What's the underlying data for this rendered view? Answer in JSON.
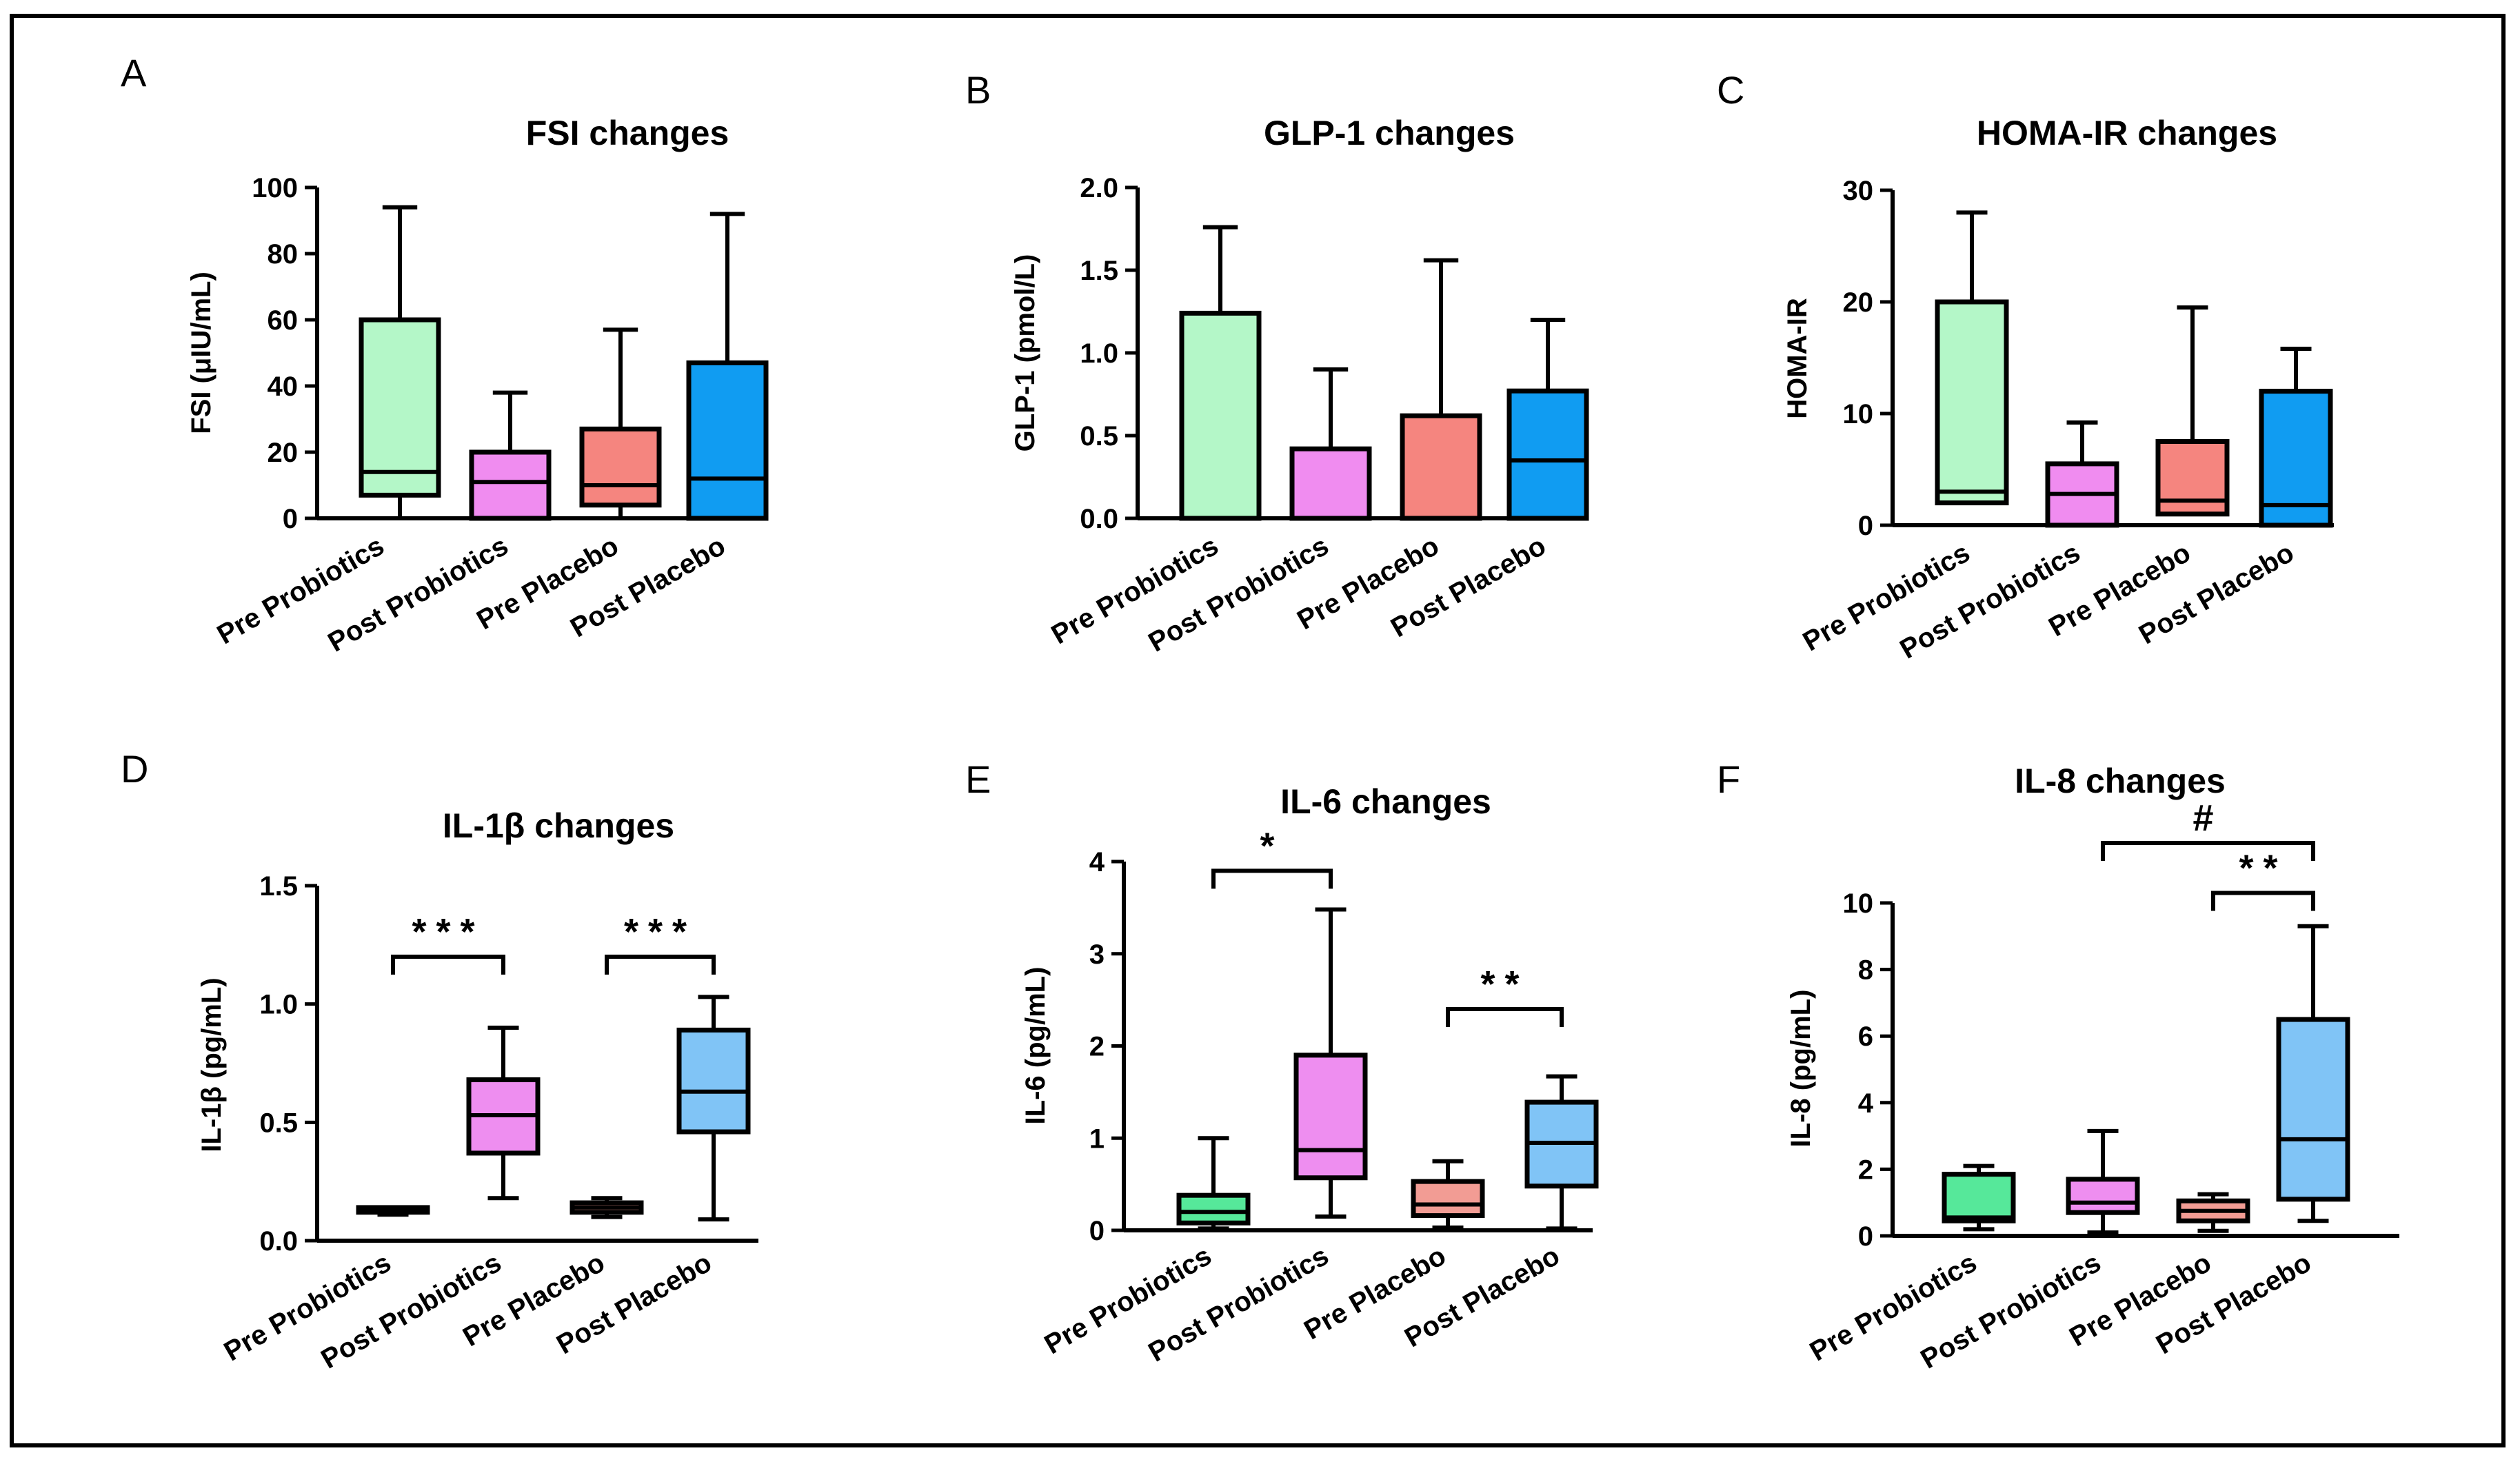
{
  "figure": {
    "background": "#ffffff",
    "stroke": "#000000"
  },
  "colors": {
    "Pre Probiotics": "#b4f7c8",
    "Post Probiotics": "#f08cf0",
    "Pre Placebo": "#f5857f",
    "Post Placebo": "#109cf2"
  },
  "colors_row2": {
    "Pre Probiotics": "#56e89a",
    "Post Probiotics": "#ee8ef0",
    "Pre Placebo": "#f29c94",
    "Post Placebo": "#80c4f6"
  },
  "chart_data": [
    {
      "panel": "A",
      "type": "box",
      "title": "FSI changes",
      "ylabel": "FSI (μIU/mL)",
      "ylim": [
        0,
        100
      ],
      "yticks": [
        "0",
        "20",
        "40",
        "60",
        "80",
        "100"
      ],
      "ytick_values": [
        0,
        20,
        40,
        60,
        80,
        100
      ],
      "categories": [
        "Pre Probiotics",
        "Post Probiotics",
        "Pre Placebo",
        "Post Placebo"
      ],
      "series": [
        {
          "name": "Pre Probiotics",
          "min": 0,
          "q1": 7,
          "median": 14,
          "q3": 60,
          "max": 94
        },
        {
          "name": "Post Probiotics",
          "min": 0,
          "q1": 0,
          "median": 11,
          "q3": 20,
          "max": 38
        },
        {
          "name": "Pre Placebo",
          "min": 0,
          "q1": 4,
          "median": 10,
          "q3": 27,
          "max": 57
        },
        {
          "name": "Post Placebo",
          "min": 0,
          "q1": 0,
          "median": 12,
          "q3": 47,
          "max": 92
        }
      ],
      "significance": []
    },
    {
      "panel": "B",
      "type": "box",
      "title": "GLP-1 changes",
      "ylabel": "GLP-1 (pmol/L)",
      "ylim": [
        0,
        2.0
      ],
      "yticks": [
        "0.0",
        "0.5",
        "1.0",
        "1.5",
        "2.0"
      ],
      "ytick_values": [
        0,
        0.5,
        1.0,
        1.5,
        2.0
      ],
      "categories": [
        "Pre Probiotics",
        "Post Probiotics",
        "Pre Placebo",
        "Post Placebo"
      ],
      "series": [
        {
          "name": "Pre Probiotics",
          "min": 0,
          "q1": 0,
          "median": 0,
          "q3": 1.24,
          "max": 1.76
        },
        {
          "name": "Post Probiotics",
          "min": 0,
          "q1": 0,
          "median": 0,
          "q3": 0.42,
          "max": 0.9
        },
        {
          "name": "Pre Placebo",
          "min": 0,
          "q1": 0,
          "median": 0,
          "q3": 0.62,
          "max": 1.56
        },
        {
          "name": "Post Placebo",
          "min": 0,
          "q1": 0,
          "median": 0.35,
          "q3": 0.77,
          "max": 1.2
        }
      ],
      "significance": []
    },
    {
      "panel": "C",
      "type": "box",
      "title": "HOMA-IR changes",
      "ylabel": "HOMA-IR",
      "ylim": [
        0,
        30
      ],
      "yticks": [
        "0",
        "10",
        "20",
        "30"
      ],
      "ytick_values": [
        0,
        10,
        20,
        30
      ],
      "categories": [
        "Pre Probiotics",
        "Post Probiotics",
        "Pre Placebo",
        "Post Placebo"
      ],
      "series": [
        {
          "name": "Pre Probiotics",
          "min": 2,
          "q1": 2,
          "median": 3,
          "q3": 20,
          "max": 28
        },
        {
          "name": "Post Probiotics",
          "min": 0,
          "q1": 0,
          "median": 2.8,
          "q3": 5.5,
          "max": 9.2
        },
        {
          "name": "Pre Placebo",
          "min": 1,
          "q1": 1,
          "median": 2.2,
          "q3": 7.5,
          "max": 19.5
        },
        {
          "name": "Post Placebo",
          "min": 0,
          "q1": 0,
          "median": 1.8,
          "q3": 12,
          "max": 15.8
        }
      ],
      "significance": []
    },
    {
      "panel": "D",
      "type": "box",
      "title": "IL-1β changes",
      "ylabel": "IL-1β (pg/mL)",
      "ylim": [
        0,
        1.5
      ],
      "yticks": [
        "0.0",
        "0.5",
        "1.0",
        "1.5"
      ],
      "ytick_values": [
        0,
        0.5,
        1.0,
        1.5
      ],
      "categories": [
        "Pre Probiotics",
        "Post Probiotics",
        "Pre Placebo",
        "Post Placebo"
      ],
      "series": [
        {
          "name": "Pre Probiotics",
          "min": 0.11,
          "q1": 0.12,
          "median": 0.13,
          "q3": 0.14,
          "max": 0.14
        },
        {
          "name": "Post Probiotics",
          "min": 0.18,
          "q1": 0.37,
          "median": 0.53,
          "q3": 0.68,
          "max": 0.9
        },
        {
          "name": "Pre Placebo",
          "min": 0.1,
          "q1": 0.12,
          "median": 0.14,
          "q3": 0.16,
          "max": 0.18
        },
        {
          "name": "Post Placebo",
          "min": 0.09,
          "q1": 0.46,
          "median": 0.63,
          "q3": 0.89,
          "max": 1.03
        }
      ],
      "significance": [
        {
          "from": 0,
          "to": 1,
          "level": 1.2,
          "label": "***"
        },
        {
          "from": 2,
          "to": 3,
          "level": 1.2,
          "label": "***"
        }
      ]
    },
    {
      "panel": "E",
      "type": "box",
      "title": "IL-6 changes",
      "ylabel": "IL-6 (pg/mL)",
      "ylim": [
        0,
        4
      ],
      "yticks": [
        "0",
        "1",
        "2",
        "3",
        "4"
      ],
      "ytick_values": [
        0,
        1,
        2,
        3,
        4
      ],
      "categories": [
        "Pre Probiotics",
        "Post Probiotics",
        "Pre Placebo",
        "Post Placebo"
      ],
      "series": [
        {
          "name": "Pre Probiotics",
          "min": 0.02,
          "q1": 0.08,
          "median": 0.2,
          "q3": 0.38,
          "max": 1.0
        },
        {
          "name": "Post Probiotics",
          "min": 0.15,
          "q1": 0.57,
          "median": 0.87,
          "q3": 1.9,
          "max": 3.48
        },
        {
          "name": "Pre Placebo",
          "min": 0.03,
          "q1": 0.16,
          "median": 0.28,
          "q3": 0.53,
          "max": 0.75
        },
        {
          "name": "Post Placebo",
          "min": 0.02,
          "q1": 0.48,
          "median": 0.95,
          "q3": 1.39,
          "max": 1.67
        }
      ],
      "significance": [
        {
          "from": 0,
          "to": 1,
          "level": 3.9,
          "label": "*"
        },
        {
          "from": 2,
          "to": 3,
          "level": 2.4,
          "label": "**"
        }
      ]
    },
    {
      "panel": "F",
      "type": "box",
      "title": "IL-8 changes",
      "ylabel": "IL-8 (pg/mL)",
      "ylim": [
        0,
        10
      ],
      "yticks": [
        "0",
        "2",
        "4",
        "6",
        "8",
        "10"
      ],
      "ytick_values": [
        0,
        2,
        4,
        6,
        8,
        10
      ],
      "categories": [
        "Pre Probiotics",
        "Post Probiotics",
        "Pre Placebo",
        "Post Placebo"
      ],
      "series": [
        {
          "name": "Pre Probiotics",
          "min": 0.2,
          "q1": 0.45,
          "median": 0.55,
          "q3": 1.85,
          "max": 2.1
        },
        {
          "name": "Post Probiotics",
          "min": 0.1,
          "q1": 0.7,
          "median": 1.0,
          "q3": 1.7,
          "max": 3.15
        },
        {
          "name": "Pre Placebo",
          "min": 0.15,
          "q1": 0.45,
          "median": 0.75,
          "q3": 1.05,
          "max": 1.25
        },
        {
          "name": "Post Placebo",
          "min": 0.45,
          "q1": 1.1,
          "median": 2.9,
          "q3": 6.5,
          "max": 9.3
        }
      ],
      "significance": [
        {
          "from": 2,
          "to": 3,
          "level": 10.3,
          "label": "**"
        },
        {
          "from": 1,
          "to": 3,
          "level": 11.8,
          "label": "#"
        }
      ]
    }
  ]
}
